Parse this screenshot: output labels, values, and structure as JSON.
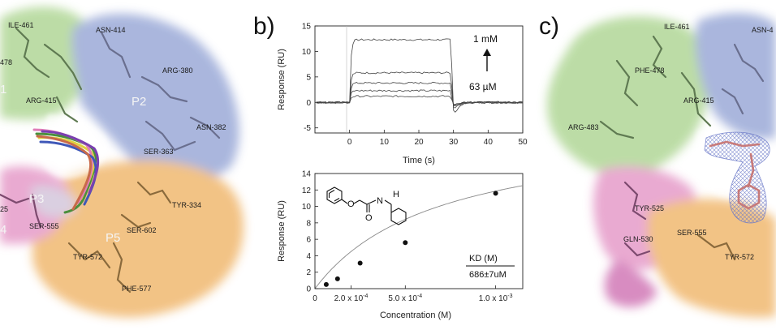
{
  "panels": {
    "b": "b)",
    "c": "c)"
  },
  "panel_a": {
    "residues": [
      "ILE-461",
      "ASN-414",
      "478",
      "ARG-380",
      "1",
      "ARG-415",
      "P2",
      "ASN-382",
      "SER-363",
      "TYR-334",
      "25",
      "P3",
      "4",
      "SER-555",
      "SER-602",
      "P5",
      "TYR-572",
      "PHE-577"
    ],
    "colors": {
      "p1": "#b9dba2",
      "p2": "#a6b3dc",
      "p3": "#e8a6cf",
      "p5": "#f2c07f"
    }
  },
  "panel_c": {
    "residues": [
      "ILE-461",
      "ASN-4",
      "PHE-478",
      "ARG-483",
      "ARG-415",
      "TYR-525",
      "GLN-530",
      "SER-555",
      "TYR-572"
    ]
  },
  "chart_data": [
    {
      "type": "line",
      "xlabel": "Time (s)",
      "ylabel": "Response (RU)",
      "xlim": [
        -10,
        50
      ],
      "ylim": [
        -6,
        15
      ],
      "xticks": [
        0,
        10,
        20,
        30,
        40,
        50
      ],
      "yticks": [
        -5,
        0,
        5,
        10,
        15
      ],
      "annotations": {
        "top": "1 mM",
        "bottom": "63 µM"
      },
      "series": [
        {
          "plateau": 12.3
        },
        {
          "plateau": 5.8
        },
        {
          "plateau": 3.8
        },
        {
          "plateau": 2.3
        },
        {
          "plateau": 1.2
        }
      ]
    },
    {
      "type": "scatter",
      "xlabel": "Concentration (M)",
      "ylabel": "Response (RU)",
      "xlim": [
        0,
        0.00115
      ],
      "ylim": [
        0,
        14
      ],
      "xtick_labels": [
        "0",
        "2.0 x 10",
        "5.0 x 10",
        "1.0 x 10"
      ],
      "xtick_exps": [
        "-4",
        "-4",
        "-3"
      ],
      "yticks": [
        0,
        2,
        4,
        6,
        8,
        10,
        12,
        14
      ],
      "x": [
        6.25e-05,
        0.000125,
        0.00025,
        0.0005,
        0.001
      ],
      "y": [
        0.5,
        1.2,
        3.1,
        5.6,
        11.6
      ],
      "fit": {
        "rmax": 20.0,
        "kd": 0.000686
      },
      "kd_label": "KD (M)",
      "kd_value": "686±7uM",
      "structure_labels": {
        "oxygen_ring": "O",
        "oxygen_carbonyl": "O",
        "nitrogen": "N",
        "hydrogen": "H"
      }
    }
  ]
}
